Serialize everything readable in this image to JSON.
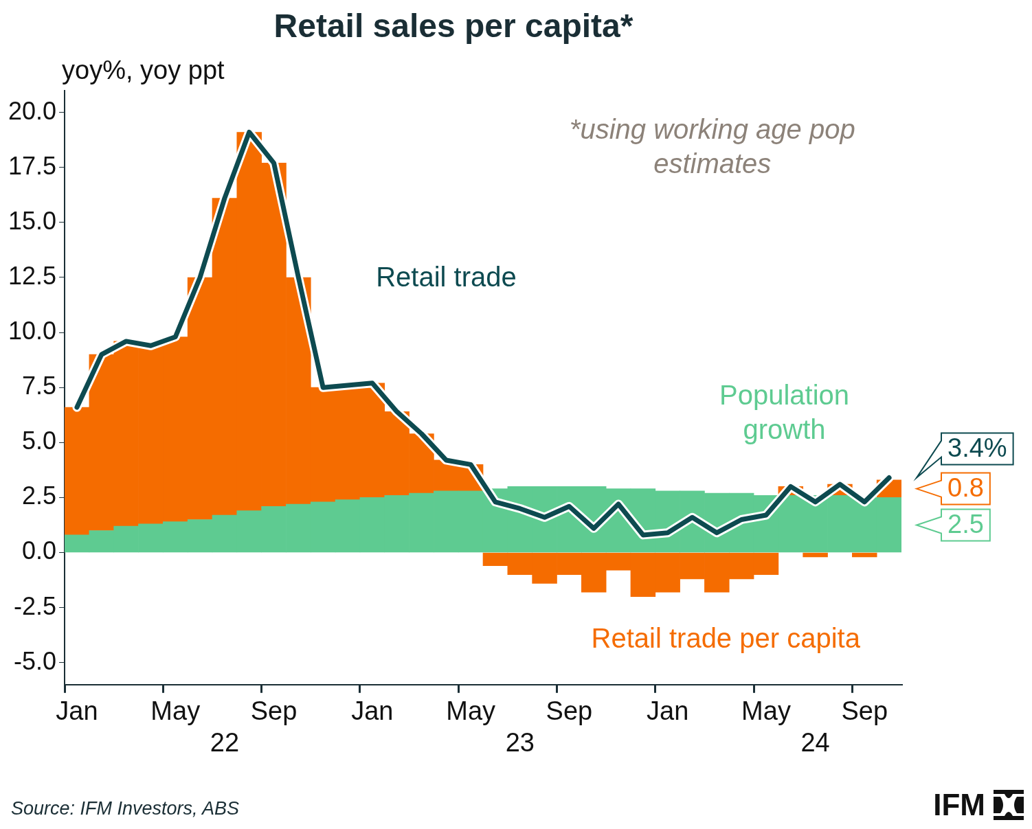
{
  "chart_data": {
    "type": "bar",
    "title": "Retail sales per capita*",
    "y_label": "yoy%, yoy ppt",
    "note": "*using working age pop estimates",
    "source": "Source: IFM Investors, ABS",
    "logo": "IFM",
    "categories": [
      "Jan",
      null,
      null,
      null,
      "May",
      null,
      null,
      null,
      "Sep",
      null,
      null,
      null,
      "Jan",
      null,
      null,
      null,
      "May",
      null,
      null,
      null,
      "Sep",
      null,
      null,
      null,
      "Jan",
      null,
      null,
      null,
      "May",
      null,
      null,
      null,
      "Sep",
      null
    ],
    "year_labels": [
      null,
      null,
      null,
      null,
      null,
      null,
      "22",
      null,
      null,
      null,
      null,
      null,
      null,
      null,
      null,
      null,
      null,
      null,
      "23",
      null,
      null,
      null,
      null,
      null,
      null,
      null,
      null,
      null,
      null,
      null,
      "24",
      null,
      null,
      null
    ],
    "stacked": true,
    "grid": false,
    "ylim": [
      -6,
      21
    ],
    "yticks": [
      {
        "value": -5,
        "label": "-5.0"
      },
      {
        "value": -2.5,
        "label": "-2.5"
      },
      {
        "value": 0,
        "label": "0.0"
      },
      {
        "value": 2.5,
        "label": "2.5"
      },
      {
        "value": 5,
        "label": "5.0"
      },
      {
        "value": 7.5,
        "label": "7.5"
      },
      {
        "value": 10,
        "label": "10.0"
      },
      {
        "value": 12.5,
        "label": "12.5"
      },
      {
        "value": 15,
        "label": "15.0"
      },
      {
        "value": 17.5,
        "label": "17.5"
      },
      {
        "value": 20,
        "label": "20.0"
      }
    ],
    "series": [
      {
        "name": "Population growth",
        "type": "bar",
        "color": "#5ecb91",
        "values": [
          0.8,
          1.0,
          1.2,
          1.3,
          1.4,
          1.5,
          1.7,
          1.9,
          2.1,
          2.2,
          2.3,
          2.4,
          2.5,
          2.6,
          2.7,
          2.8,
          2.8,
          2.9,
          3.0,
          3.0,
          3.0,
          3.0,
          2.9,
          2.9,
          2.8,
          2.8,
          2.7,
          2.7,
          2.6,
          2.6,
          2.6,
          2.6,
          2.5,
          2.5
        ]
      },
      {
        "name": "Retail trade per capita",
        "type": "bar",
        "color": "#f56c00",
        "values": [
          5.8,
          8.0,
          8.4,
          8.1,
          8.4,
          11.0,
          14.4,
          17.2,
          15.6,
          10.3,
          5.2,
          5.2,
          5.2,
          3.8,
          2.7,
          1.4,
          1.2,
          -0.6,
          -1.0,
          -1.4,
          -1.0,
          -1.8,
          -0.8,
          -2.0,
          -1.8,
          -1.2,
          -1.8,
          -1.2,
          -1.0,
          0.4,
          -0.2,
          0.5,
          -0.2,
          0.8
        ]
      },
      {
        "name": "Retail trade",
        "type": "line",
        "color": "#0d4a50",
        "values": [
          6.6,
          9.0,
          9.6,
          9.4,
          9.8,
          12.5,
          16.1,
          19.1,
          17.7,
          12.5,
          7.5,
          7.6,
          7.7,
          6.4,
          5.4,
          4.2,
          4.0,
          2.3,
          2.0,
          1.6,
          2.1,
          1.1,
          2.2,
          0.8,
          0.9,
          1.6,
          0.9,
          1.5,
          1.7,
          3.0,
          2.3,
          3.1,
          2.3,
          3.4
        ]
      }
    ],
    "annotations": [
      {
        "text": "3.4%",
        "series": "Retail trade"
      },
      {
        "text": "0.8",
        "series": "Retail trade per capita"
      },
      {
        "text": "2.5",
        "series": "Population growth"
      }
    ]
  }
}
